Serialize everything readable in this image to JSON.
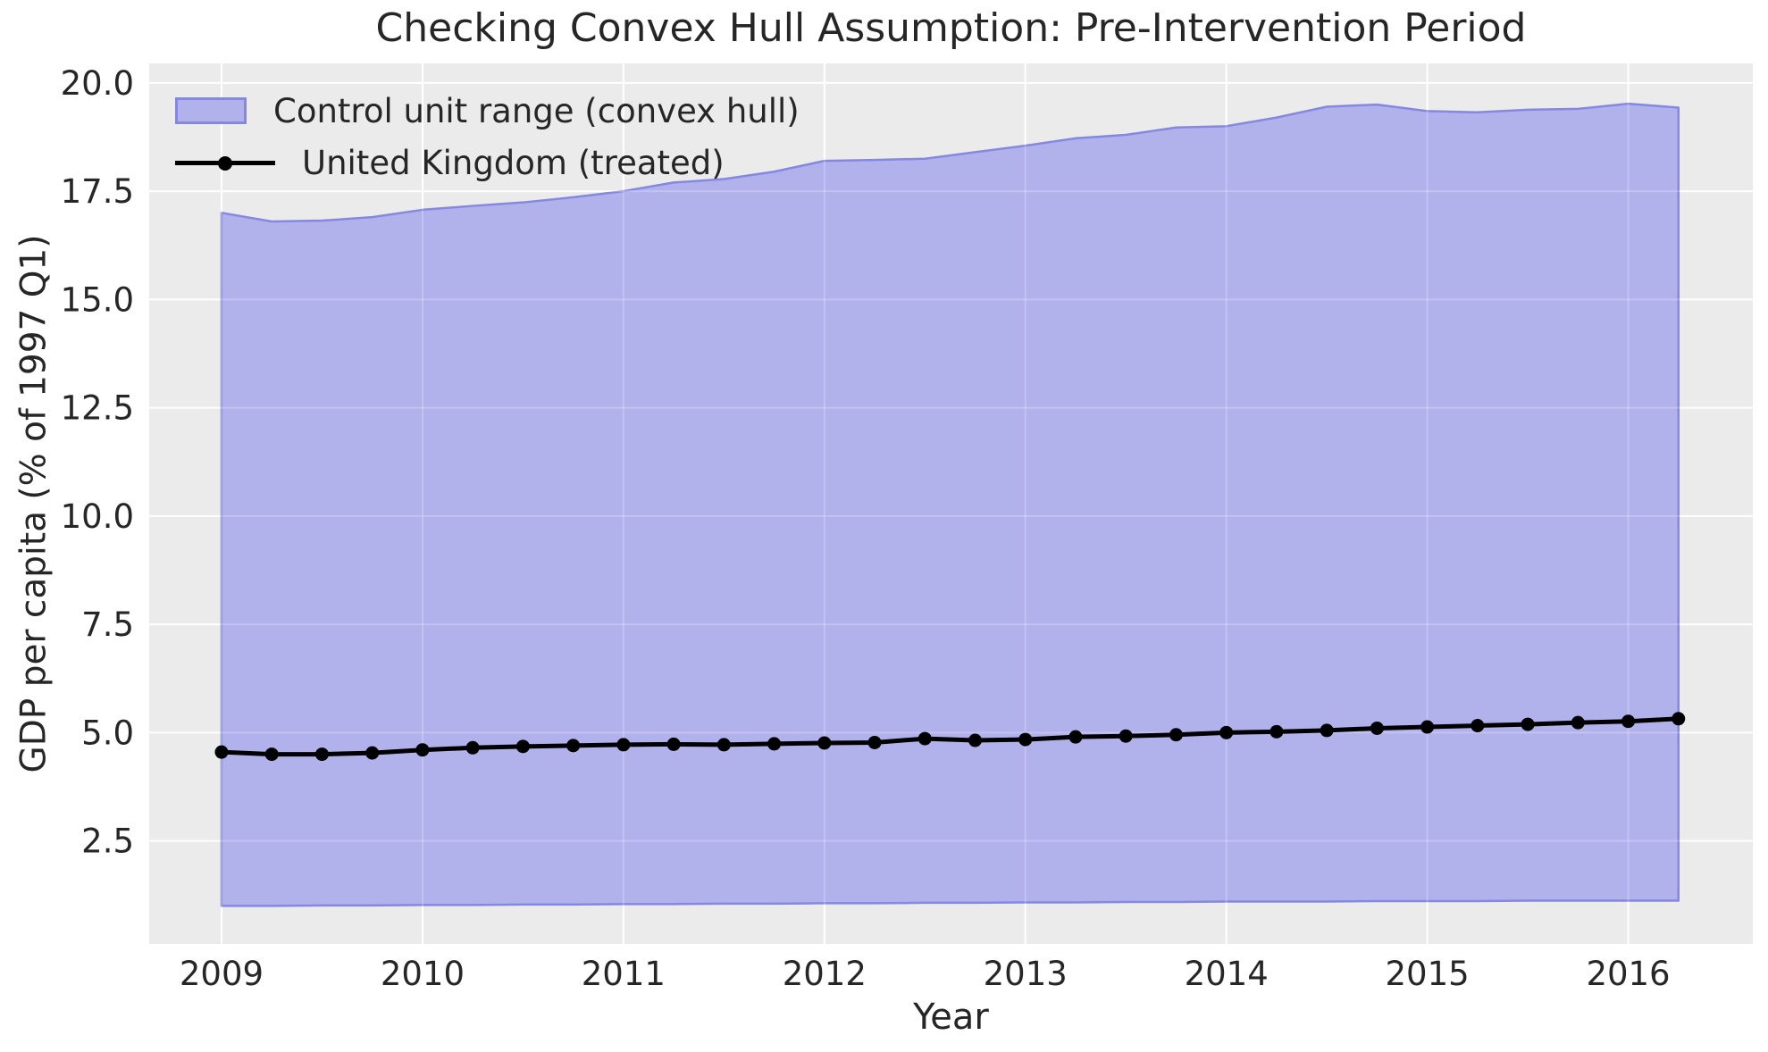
{
  "title": "Checking Convex Hull Assumption: Pre-Intervention Period",
  "xlabel": "Year",
  "ylabel": "GDP per capita (% of 1997 Q1)",
  "legend": [
    {
      "label": "Control unit range (convex hull)",
      "marker": "area-swatch"
    },
    {
      "label": "United Kingdom (treated)",
      "marker": "line-with-dot"
    }
  ],
  "colors": {
    "figure_bg": "#ffffff",
    "plot_bg": "#ebebeb",
    "grid": "#ffffff",
    "band_fill": "#b1b2ec",
    "band_edge": "#8488e0",
    "treated_line": "#000000",
    "text": "#262626"
  },
  "chart_data": {
    "type": "area",
    "title": "Checking Convex Hull Assumption: Pre-Intervention Period",
    "xlabel": "Year",
    "ylabel": "GDP per capita (% of 1997 Q1)",
    "grid": true,
    "legend_position": "upper left",
    "xlim": [
      2008.64,
      2016.62
    ],
    "ylim": [
      0.12,
      20.45
    ],
    "xticks": [
      2009,
      2010,
      2011,
      2012,
      2013,
      2014,
      2015,
      2016
    ],
    "xtick_labels": [
      "2009",
      "2010",
      "2011",
      "2012",
      "2013",
      "2014",
      "2015",
      "2016"
    ],
    "yticks": [
      2.5,
      5.0,
      7.5,
      10.0,
      12.5,
      15.0,
      17.5,
      20.0
    ],
    "ytick_labels": [
      "2.5",
      "5.0",
      "7.5",
      "10.0",
      "12.5",
      "15.0",
      "17.5",
      "20.0"
    ],
    "x": [
      2009.0,
      2009.25,
      2009.5,
      2009.75,
      2010.0,
      2010.25,
      2010.5,
      2010.75,
      2011.0,
      2011.25,
      2011.5,
      2011.75,
      2012.0,
      2012.25,
      2012.5,
      2012.75,
      2013.0,
      2013.25,
      2013.5,
      2013.75,
      2014.0,
      2014.25,
      2014.5,
      2014.75,
      2015.0,
      2015.25,
      2015.5,
      2015.75,
      2016.0,
      2016.25
    ],
    "series": [
      {
        "name": "Control unit range (convex hull)",
        "type": "band",
        "upper": [
          17.0,
          16.8,
          16.82,
          16.9,
          17.07,
          17.16,
          17.24,
          17.36,
          17.5,
          17.7,
          17.78,
          17.95,
          18.2,
          18.22,
          18.25,
          18.4,
          18.55,
          18.72,
          18.8,
          18.97,
          19.0,
          19.2,
          19.45,
          19.5,
          19.35,
          19.32,
          19.38,
          19.4,
          19.52,
          19.43
        ],
        "lower": [
          1.0,
          1.0,
          1.01,
          1.01,
          1.02,
          1.02,
          1.03,
          1.03,
          1.04,
          1.04,
          1.05,
          1.05,
          1.06,
          1.06,
          1.07,
          1.07,
          1.08,
          1.08,
          1.09,
          1.09,
          1.1,
          1.1,
          1.1,
          1.11,
          1.11,
          1.11,
          1.12,
          1.12,
          1.12,
          1.12
        ]
      },
      {
        "name": "United Kingdom (treated)",
        "type": "line+marker",
        "values": [
          4.55,
          4.5,
          4.5,
          4.53,
          4.6,
          4.65,
          4.68,
          4.7,
          4.72,
          4.73,
          4.72,
          4.74,
          4.76,
          4.77,
          4.86,
          4.82,
          4.84,
          4.9,
          4.92,
          4.95,
          5.0,
          5.02,
          5.05,
          5.1,
          5.13,
          5.16,
          5.19,
          5.23,
          5.26,
          5.32
        ]
      }
    ]
  }
}
